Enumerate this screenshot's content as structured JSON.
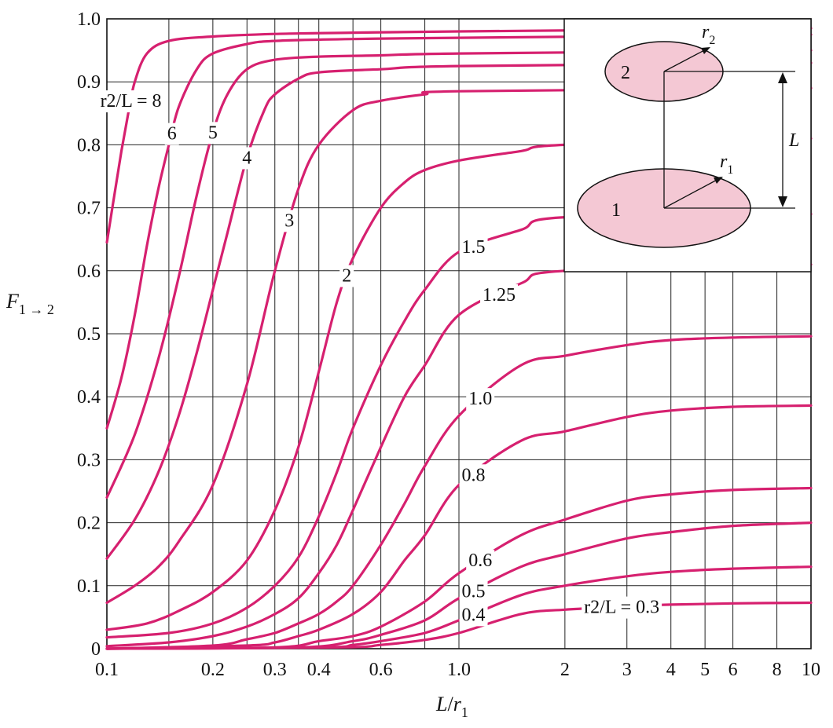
{
  "chart_data": {
    "type": "line",
    "title": "",
    "xlabel": "L/r1",
    "ylabel": "F1→2",
    "xscale": "log",
    "xlim": [
      0.1,
      10
    ],
    "ylim": [
      0,
      1.0
    ],
    "grid": true,
    "legend": "none",
    "line_color": "#d6206f",
    "x_ticks": [
      {
        "value": 0.1,
        "label": "0.1"
      },
      {
        "value": 0.2,
        "label": "0.2"
      },
      {
        "value": 0.3,
        "label": "0.3"
      },
      {
        "value": 0.4,
        "label": "0.4"
      },
      {
        "value": 0.6,
        "label": "0.6"
      },
      {
        "value": 1.0,
        "label": "1.0"
      },
      {
        "value": 2,
        "label": "2"
      },
      {
        "value": 3,
        "label": "3"
      },
      {
        "value": 4,
        "label": "4"
      },
      {
        "value": 5,
        "label": "5"
      },
      {
        "value": 6,
        "label": "6"
      },
      {
        "value": 8,
        "label": "8"
      },
      {
        "value": 10,
        "label": "10"
      }
    ],
    "x_gridlines": [
      0.1,
      0.15,
      0.2,
      0.25,
      0.3,
      0.35,
      0.4,
      0.5,
      0.6,
      0.8,
      1.0,
      2,
      3,
      4,
      5,
      6,
      8,
      10
    ],
    "y_ticks": [
      {
        "value": 0,
        "label": "0"
      },
      {
        "value": 0.1,
        "label": "0.1"
      },
      {
        "value": 0.2,
        "label": "0.2"
      },
      {
        "value": 0.3,
        "label": "0.3"
      },
      {
        "value": 0.4,
        "label": "0.4"
      },
      {
        "value": 0.5,
        "label": "0.5"
      },
      {
        "value": 0.6,
        "label": "0.6"
      },
      {
        "value": 0.7,
        "label": "0.7"
      },
      {
        "value": 0.8,
        "label": "0.8"
      },
      {
        "value": 0.9,
        "label": "0.9"
      },
      {
        "value": 1.0,
        "label": "1.0"
      }
    ],
    "series": [
      {
        "label": "r2/L = 8",
        "at_x": 0.117,
        "points": [
          [
            0.1,
            0.645
          ],
          [
            0.105,
            0.72
          ],
          [
            0.11,
            0.79
          ],
          [
            0.115,
            0.85
          ],
          [
            0.12,
            0.9
          ],
          [
            0.13,
            0.945
          ],
          [
            0.15,
            0.965
          ],
          [
            0.2,
            0.972
          ],
          [
            0.3,
            0.976
          ],
          [
            0.5,
            0.978
          ],
          [
            1.0,
            0.98
          ],
          [
            10,
            0.985
          ]
        ]
      },
      {
        "label": "6",
        "at_x": 0.153,
        "points": [
          [
            0.1,
            0.35
          ],
          [
            0.11,
            0.43
          ],
          [
            0.12,
            0.53
          ],
          [
            0.13,
            0.64
          ],
          [
            0.14,
            0.73
          ],
          [
            0.15,
            0.8
          ],
          [
            0.16,
            0.86
          ],
          [
            0.18,
            0.92
          ],
          [
            0.2,
            0.945
          ],
          [
            0.25,
            0.96
          ],
          [
            0.3,
            0.965
          ],
          [
            0.5,
            0.968
          ],
          [
            1.0,
            0.97
          ],
          [
            10,
            0.975
          ]
        ]
      },
      {
        "label": "5",
        "at_x": 0.2,
        "points": [
          [
            0.1,
            0.24
          ],
          [
            0.12,
            0.34
          ],
          [
            0.14,
            0.46
          ],
          [
            0.16,
            0.59
          ],
          [
            0.18,
            0.72
          ],
          [
            0.2,
            0.82
          ],
          [
            0.22,
            0.88
          ],
          [
            0.25,
            0.92
          ],
          [
            0.3,
            0.935
          ],
          [
            0.4,
            0.94
          ],
          [
            0.6,
            0.942
          ],
          [
            1.0,
            0.945
          ],
          [
            10,
            0.95
          ]
        ]
      },
      {
        "label": "4",
        "at_x": 0.25,
        "points": [
          [
            0.1,
            0.143
          ],
          [
            0.12,
            0.205
          ],
          [
            0.14,
            0.28
          ],
          [
            0.16,
            0.37
          ],
          [
            0.18,
            0.47
          ],
          [
            0.2,
            0.57
          ],
          [
            0.22,
            0.66
          ],
          [
            0.25,
            0.78
          ],
          [
            0.28,
            0.855
          ],
          [
            0.3,
            0.88
          ],
          [
            0.35,
            0.905
          ],
          [
            0.4,
            0.915
          ],
          [
            0.6,
            0.92
          ],
          [
            1.0,
            0.925
          ],
          [
            10,
            0.93
          ]
        ]
      },
      {
        "label": "3",
        "at_x": 0.33,
        "points": [
          [
            0.1,
            0.073
          ],
          [
            0.12,
            0.1
          ],
          [
            0.14,
            0.13
          ],
          [
            0.16,
            0.17
          ],
          [
            0.2,
            0.26
          ],
          [
            0.25,
            0.42
          ],
          [
            0.3,
            0.6
          ],
          [
            0.35,
            0.73
          ],
          [
            0.4,
            0.8
          ],
          [
            0.5,
            0.855
          ],
          [
            0.6,
            0.87
          ],
          [
            0.8,
            0.88
          ],
          [
            1.0,
            0.885
          ],
          [
            10,
            0.89
          ]
        ]
      },
      {
        "label": "2",
        "at_x": 0.48,
        "points": [
          [
            0.1,
            0.03
          ],
          [
            0.13,
            0.04
          ],
          [
            0.16,
            0.06
          ],
          [
            0.2,
            0.09
          ],
          [
            0.25,
            0.14
          ],
          [
            0.3,
            0.22
          ],
          [
            0.35,
            0.32
          ],
          [
            0.4,
            0.44
          ],
          [
            0.45,
            0.55
          ],
          [
            0.5,
            0.62
          ],
          [
            0.6,
            0.7
          ],
          [
            0.7,
            0.74
          ],
          [
            0.8,
            0.76
          ],
          [
            1.0,
            0.775
          ],
          [
            1.5,
            0.79
          ],
          [
            2,
            0.8
          ],
          [
            10,
            0.81
          ]
        ]
      },
      {
        "label": "1.5",
        "at_x": 1.1,
        "points": [
          [
            0.1,
            0.018
          ],
          [
            0.15,
            0.025
          ],
          [
            0.2,
            0.04
          ],
          [
            0.25,
            0.065
          ],
          [
            0.3,
            0.1
          ],
          [
            0.35,
            0.145
          ],
          [
            0.4,
            0.21
          ],
          [
            0.45,
            0.28
          ],
          [
            0.5,
            0.35
          ],
          [
            0.6,
            0.45
          ],
          [
            0.7,
            0.52
          ],
          [
            0.8,
            0.57
          ],
          [
            1.0,
            0.63
          ],
          [
            1.5,
            0.665
          ],
          [
            2,
            0.685
          ],
          [
            10,
            0.69
          ]
        ]
      },
      {
        "label": "1.25",
        "at_x": 1.3,
        "points": [
          [
            0.1,
            0.004
          ],
          [
            0.15,
            0.01
          ],
          [
            0.2,
            0.02
          ],
          [
            0.25,
            0.035
          ],
          [
            0.3,
            0.055
          ],
          [
            0.35,
            0.08
          ],
          [
            0.4,
            0.12
          ],
          [
            0.45,
            0.165
          ],
          [
            0.5,
            0.22
          ],
          [
            0.6,
            0.32
          ],
          [
            0.7,
            0.4
          ],
          [
            0.8,
            0.45
          ],
          [
            1.0,
            0.53
          ],
          [
            1.5,
            0.58
          ],
          [
            2,
            0.6
          ],
          [
            10,
            0.61
          ]
        ]
      },
      {
        "label": "1.0",
        "at_x": 1.15,
        "points": [
          [
            0.1,
            0
          ],
          [
            0.2,
            0.005
          ],
          [
            0.25,
            0.015
          ],
          [
            0.3,
            0.025
          ],
          [
            0.35,
            0.04
          ],
          [
            0.4,
            0.055
          ],
          [
            0.45,
            0.075
          ],
          [
            0.5,
            0.1
          ],
          [
            0.6,
            0.165
          ],
          [
            0.7,
            0.23
          ],
          [
            0.8,
            0.29
          ],
          [
            1.0,
            0.37
          ],
          [
            1.5,
            0.45
          ],
          [
            2,
            0.465
          ],
          [
            3,
            0.482
          ],
          [
            4,
            0.49
          ],
          [
            6,
            0.494
          ],
          [
            10,
            0.496
          ]
        ]
      },
      {
        "label": "0.8",
        "at_x": 1.1,
        "points": [
          [
            0.1,
            0
          ],
          [
            0.25,
            0.005
          ],
          [
            0.3,
            0.01
          ],
          [
            0.35,
            0.02
          ],
          [
            0.4,
            0.03
          ],
          [
            0.5,
            0.055
          ],
          [
            0.6,
            0.09
          ],
          [
            0.7,
            0.14
          ],
          [
            0.8,
            0.18
          ],
          [
            1.0,
            0.26
          ],
          [
            1.5,
            0.33
          ],
          [
            2,
            0.345
          ],
          [
            3,
            0.368
          ],
          [
            4,
            0.378
          ],
          [
            6,
            0.384
          ],
          [
            10,
            0.386
          ]
        ]
      },
      {
        "label": "0.6",
        "at_x": 1.15,
        "points": [
          [
            0.1,
            0
          ],
          [
            0.3,
            0.002
          ],
          [
            0.4,
            0.012
          ],
          [
            0.5,
            0.02
          ],
          [
            0.6,
            0.035
          ],
          [
            0.8,
            0.075
          ],
          [
            1.0,
            0.12
          ],
          [
            1.5,
            0.18
          ],
          [
            2,
            0.205
          ],
          [
            3,
            0.235
          ],
          [
            4,
            0.245
          ],
          [
            6,
            0.252
          ],
          [
            10,
            0.255
          ]
        ]
      },
      {
        "label": "0.5",
        "at_x": 1.1,
        "points": [
          [
            0.1,
            0
          ],
          [
            0.35,
            0.002
          ],
          [
            0.5,
            0.012
          ],
          [
            0.6,
            0.022
          ],
          [
            0.8,
            0.045
          ],
          [
            1.0,
            0.08
          ],
          [
            1.5,
            0.13
          ],
          [
            2,
            0.15
          ],
          [
            3,
            0.175
          ],
          [
            4,
            0.185
          ],
          [
            6,
            0.195
          ],
          [
            10,
            0.2
          ]
        ]
      },
      {
        "label": "0.4",
        "at_x": 1.1,
        "points": [
          [
            0.1,
            0
          ],
          [
            0.4,
            0.002
          ],
          [
            0.5,
            0.006
          ],
          [
            0.6,
            0.012
          ],
          [
            0.8,
            0.025
          ],
          [
            1.0,
            0.045
          ],
          [
            1.5,
            0.085
          ],
          [
            2,
            0.1
          ],
          [
            3,
            0.115
          ],
          [
            4,
            0.122
          ],
          [
            6,
            0.127
          ],
          [
            10,
            0.13
          ]
        ]
      },
      {
        "label": "r2/L = 0.3",
        "at_x": 2.9,
        "points": [
          [
            0.1,
            0
          ],
          [
            0.45,
            0.002
          ],
          [
            0.6,
            0.006
          ],
          [
            0.8,
            0.014
          ],
          [
            1.0,
            0.025
          ],
          [
            1.5,
            0.055
          ],
          [
            2,
            0.062
          ],
          [
            3,
            0.067
          ],
          [
            4,
            0.07
          ],
          [
            6,
            0.072
          ],
          [
            10,
            0.073
          ]
        ]
      }
    ],
    "inset": {
      "disk_top_label": "2",
      "disk_bottom_label": "1",
      "radius_top_label": "r2",
      "radius_bottom_label": "r1",
      "distance_label": "L",
      "fill_color": "#f4c8d4"
    }
  }
}
